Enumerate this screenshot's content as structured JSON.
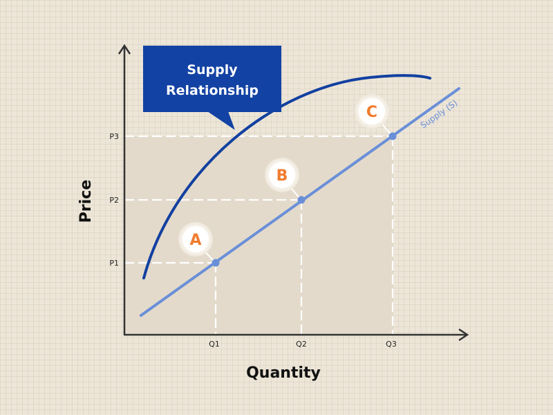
{
  "callout": {
    "line1": "Supply",
    "line2": "Relationship"
  },
  "axes": {
    "x_title": "Quantity",
    "y_title": "Price"
  },
  "curve_label": "Supply (S)",
  "colors": {
    "curve": "#1240a0",
    "line": "#6a8fd8",
    "callout_bg": "#1242a3",
    "badge_text": "#f07c2e",
    "guide": "#ffffff",
    "axis": "#333333",
    "shade": "#e3dacb"
  },
  "chart_data": {
    "type": "line",
    "x_ticks": [
      "Q1",
      "Q2",
      "Q3"
    ],
    "y_ticks": [
      "P1",
      "P2",
      "P3"
    ],
    "points": [
      {
        "label": "A",
        "x": "Q1",
        "y": "P1"
      },
      {
        "label": "B",
        "x": "Q2",
        "y": "P2"
      },
      {
        "label": "C",
        "x": "Q3",
        "y": "P3"
      }
    ]
  }
}
